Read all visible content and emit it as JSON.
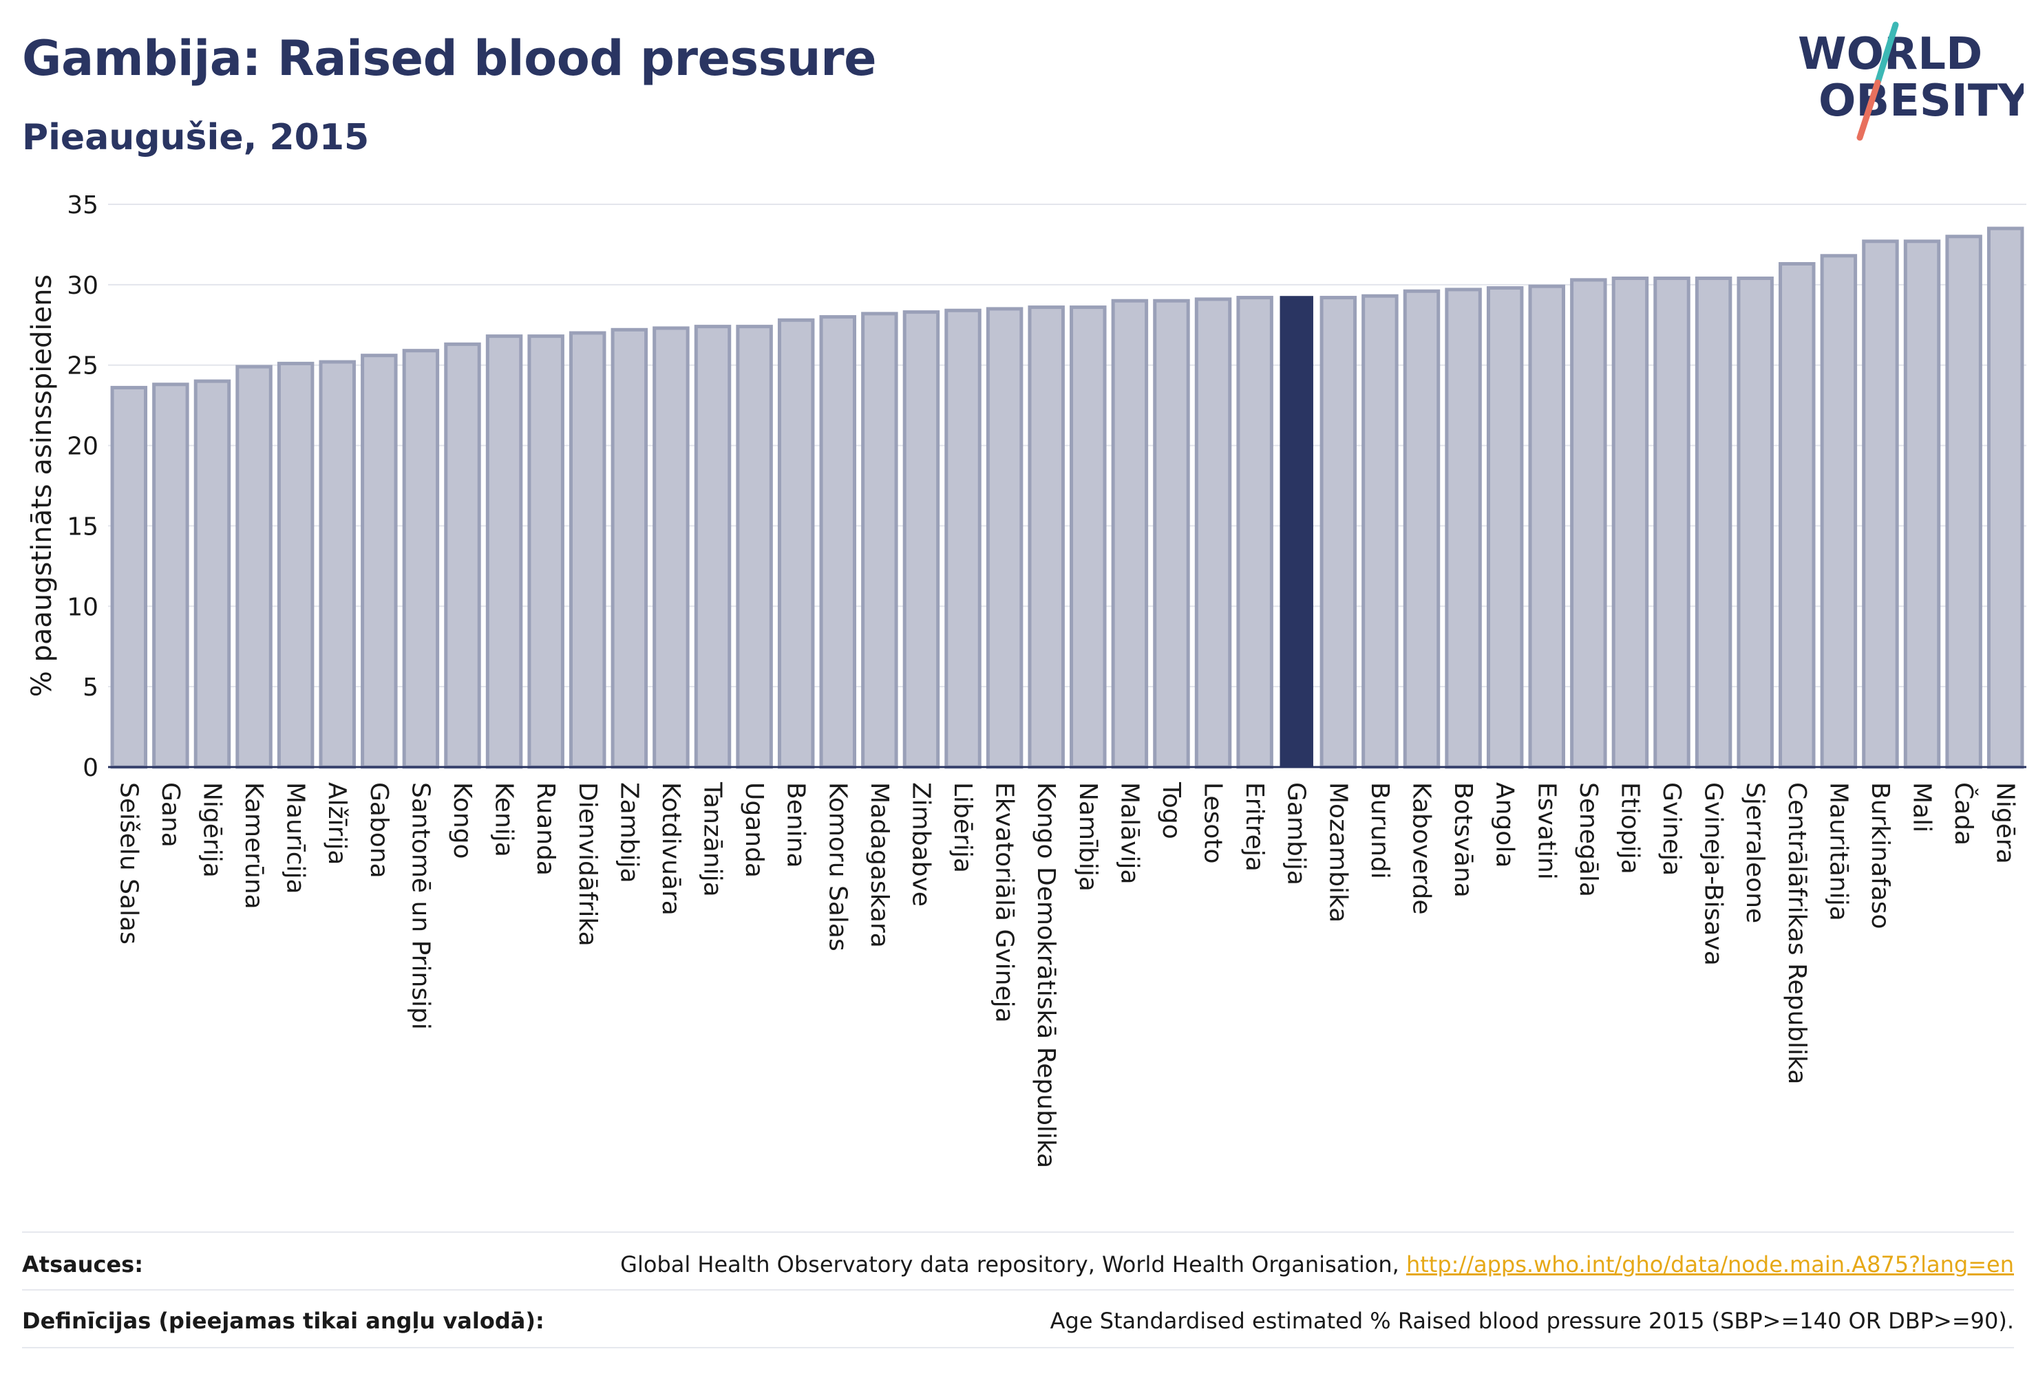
{
  "header": {
    "title": "Gambija: Raised blood pressure",
    "subtitle": "Pieaugušie, 2015"
  },
  "logo": {
    "line1": "WORLD",
    "line2": "OBESITY"
  },
  "colors": {
    "bar": "#c0c3d2",
    "bar_edge": "#9aa0b8",
    "highlight": "#2a3562",
    "grid": "#e3e5ec",
    "text": "#2a3562",
    "logo_teal": "#3cb8b5",
    "logo_coral": "#e8705d",
    "link": "#e6a817"
  },
  "chart_data": {
    "type": "bar",
    "ylabel": "% paaugstināts asinsspiediens",
    "ylim": [
      0,
      35
    ],
    "yticks": [
      0,
      5,
      10,
      15,
      20,
      25,
      30,
      35
    ],
    "grid": true,
    "highlight": "Gambija",
    "categories": [
      "Seišelu Salas",
      "Gana",
      "Nigērija",
      "Kamerūna",
      "Maurīcija",
      "Alžīrija",
      "Gabona",
      "Santomē un Prinsipi",
      "Kongo",
      "Kenija",
      "Ruanda",
      "Dienvidāfrika",
      "Zambija",
      "Kotdivuāra",
      "Tanzānija",
      "Uganda",
      "Benina",
      "Komoru Salas",
      "Madagaskara",
      "Zimbabve",
      "Libērija",
      "Ekvatoriālā Gvineja",
      "Kongo Demokrātiskā Republika",
      "Namībija",
      "Malāvija",
      "Togo",
      "Lesoto",
      "Eritreja",
      "Gambija",
      "Mozambika",
      "Burundi",
      "Kaboverde",
      "Botsvāna",
      "Angola",
      "Esvatini",
      "Senegāla",
      "Etiopija",
      "Gvineja",
      "Gvineja-Bisava",
      "Sjerraleone",
      "Centrālāfrikas Republika",
      "Mauritānija",
      "Burkinafaso",
      "Mali",
      "Čada",
      "Nigēra"
    ],
    "values": [
      23.6,
      23.8,
      24.0,
      24.9,
      25.1,
      25.2,
      25.6,
      25.9,
      26.3,
      26.8,
      26.8,
      27.0,
      27.2,
      27.3,
      27.4,
      27.4,
      27.8,
      28.0,
      28.2,
      28.3,
      28.4,
      28.5,
      28.6,
      28.6,
      29.0,
      29.0,
      29.1,
      29.2,
      29.3,
      29.2,
      29.3,
      29.6,
      29.7,
      29.8,
      29.9,
      30.3,
      30.4,
      30.4,
      30.4,
      30.4,
      31.3,
      31.8,
      32.7,
      32.7,
      33.0,
      33.5
    ]
  },
  "footer": {
    "sources_label": "Atsauces:",
    "sources_text": "Global Health Observatory data repository, World Health Organisation, ",
    "sources_link": "http://apps.who.int/gho/data/node.main.A875?lang=en",
    "definitions_label": "Definīcijas (pieejamas tikai angļu valodā):",
    "definitions_text": "Age Standardised estimated % Raised blood pressure 2015 (SBP>=140 OR DBP>=90)."
  }
}
